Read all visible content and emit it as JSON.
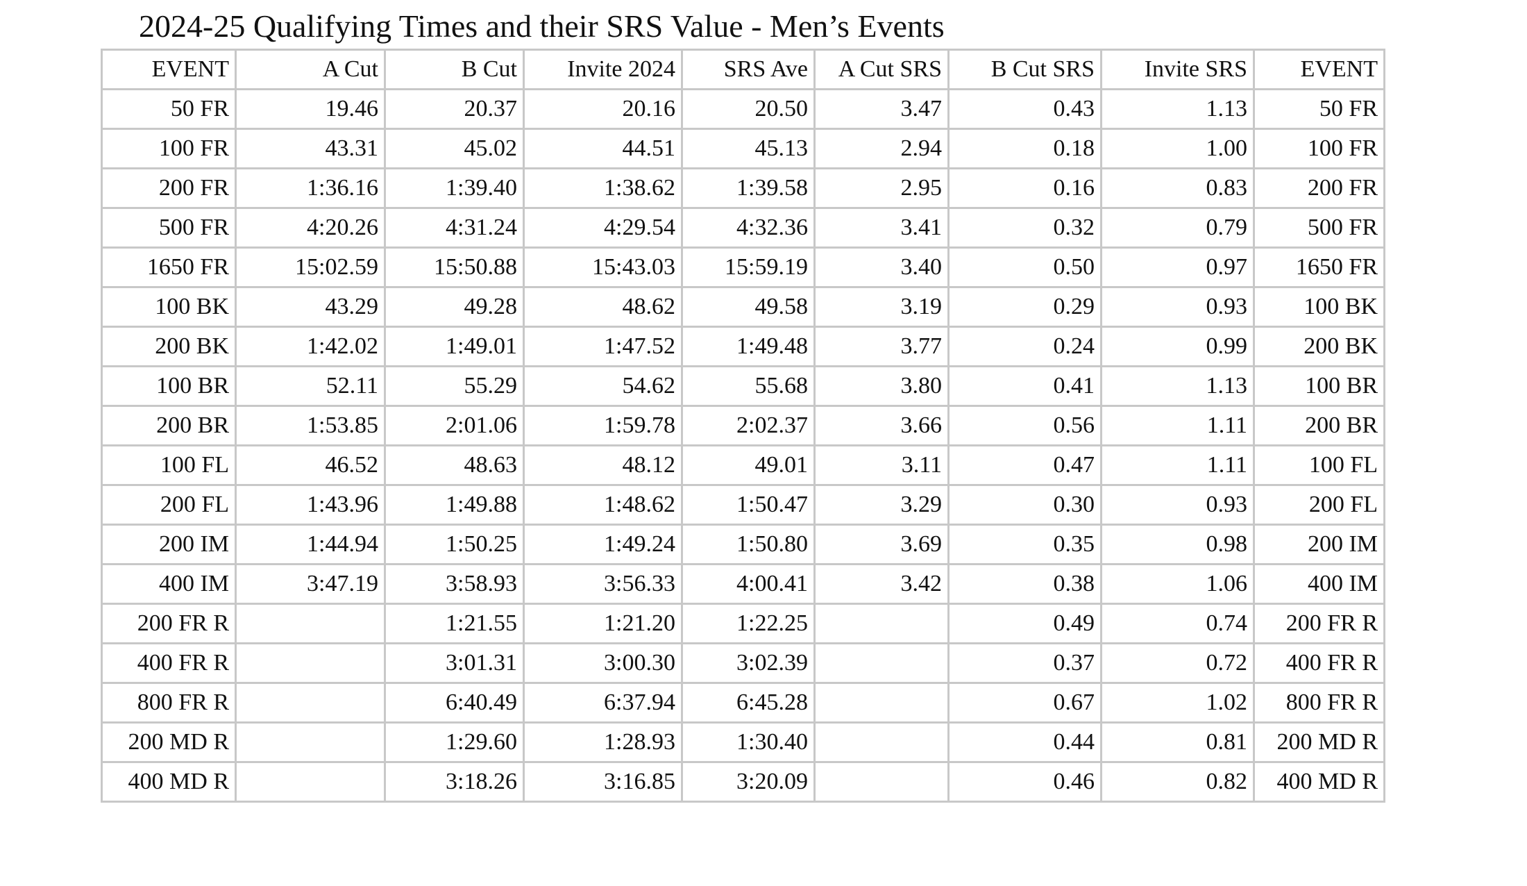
{
  "title": "2024-25 Qualifying Times and their SRS Value - Men’s Events",
  "table": {
    "columns": [
      "EVENT",
      "A Cut",
      "B Cut",
      "Invite 2024",
      "SRS Ave",
      "A Cut SRS",
      "B Cut SRS",
      "Invite SRS",
      "EVENT"
    ],
    "rows": [
      [
        "50 FR",
        "19.46",
        "20.37",
        "20.16",
        "20.50",
        "3.47",
        "0.43",
        "1.13",
        "50 FR"
      ],
      [
        "100 FR",
        "43.31",
        "45.02",
        "44.51",
        "45.13",
        "2.94",
        "0.18",
        "1.00",
        "100 FR"
      ],
      [
        "200 FR",
        "1:36.16",
        "1:39.40",
        "1:38.62",
        "1:39.58",
        "2.95",
        "0.16",
        "0.83",
        "200 FR"
      ],
      [
        "500 FR",
        "4:20.26",
        "4:31.24",
        "4:29.54",
        "4:32.36",
        "3.41",
        "0.32",
        "0.79",
        "500 FR"
      ],
      [
        "1650 FR",
        "15:02.59",
        "15:50.88",
        "15:43.03",
        "15:59.19",
        "3.40",
        "0.50",
        "0.97",
        "1650 FR"
      ],
      [
        "100 BK",
        "43.29",
        "49.28",
        "48.62",
        "49.58",
        "3.19",
        "0.29",
        "0.93",
        "100 BK"
      ],
      [
        "200 BK",
        "1:42.02",
        "1:49.01",
        "1:47.52",
        "1:49.48",
        "3.77",
        "0.24",
        "0.99",
        "200 BK"
      ],
      [
        "100 BR",
        "52.11",
        "55.29",
        "54.62",
        "55.68",
        "3.80",
        "0.41",
        "1.13",
        "100 BR"
      ],
      [
        "200 BR",
        "1:53.85",
        "2:01.06",
        "1:59.78",
        "2:02.37",
        "3.66",
        "0.56",
        "1.11",
        "200 BR"
      ],
      [
        "100 FL",
        "46.52",
        "48.63",
        "48.12",
        "49.01",
        "3.11",
        "0.47",
        "1.11",
        "100 FL"
      ],
      [
        "200 FL",
        "1:43.96",
        "1:49.88",
        "1:48.62",
        "1:50.47",
        "3.29",
        "0.30",
        "0.93",
        "200 FL"
      ],
      [
        "200 IM",
        "1:44.94",
        "1:50.25",
        "1:49.24",
        "1:50.80",
        "3.69",
        "0.35",
        "0.98",
        "200 IM"
      ],
      [
        "400 IM",
        "3:47.19",
        "3:58.93",
        "3:56.33",
        "4:00.41",
        "3.42",
        "0.38",
        "1.06",
        "400 IM"
      ],
      [
        "200 FR R",
        "",
        "1:21.55",
        "1:21.20",
        "1:22.25",
        "",
        "0.49",
        "0.74",
        "200 FR R"
      ],
      [
        "400 FR R",
        "",
        "3:01.31",
        "3:00.30",
        "3:02.39",
        "",
        "0.37",
        "0.72",
        "400 FR R"
      ],
      [
        "800 FR R",
        "",
        "6:40.49",
        "6:37.94",
        "6:45.28",
        "",
        "0.67",
        "1.02",
        "800 FR R"
      ],
      [
        "200 MD R",
        "",
        "1:29.60",
        "1:28.93",
        "1:30.40",
        "",
        "0.44",
        "0.81",
        "200 MD R"
      ],
      [
        "400 MD R",
        "",
        "3:18.26",
        "3:16.85",
        "3:20.09",
        "",
        "0.46",
        "0.82",
        "400 MD R"
      ]
    ]
  }
}
